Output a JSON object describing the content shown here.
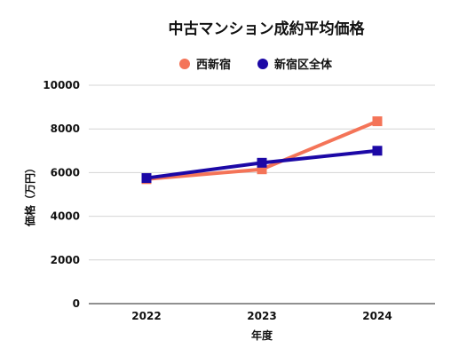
{
  "chart_data": {
    "type": "line",
    "title": "中古マンション成約平均価格",
    "xlabel": "年度",
    "ylabel": "価格（万円）",
    "categories": [
      "2022",
      "2023",
      "2024"
    ],
    "ylim": [
      0,
      10000
    ],
    "yticks": [
      "0",
      "2000",
      "4000",
      "6000",
      "8000",
      "10000"
    ],
    "grid": true,
    "legend_position": "top-center",
    "series": [
      {
        "name": "西新宿",
        "color": "#f47458",
        "marker": "square",
        "values": [
          5700,
          6150,
          8350
        ]
      },
      {
        "name": "新宿区全体",
        "color": "#1c08a6",
        "marker": "square",
        "values": [
          5750,
          6450,
          7000
        ]
      }
    ]
  }
}
